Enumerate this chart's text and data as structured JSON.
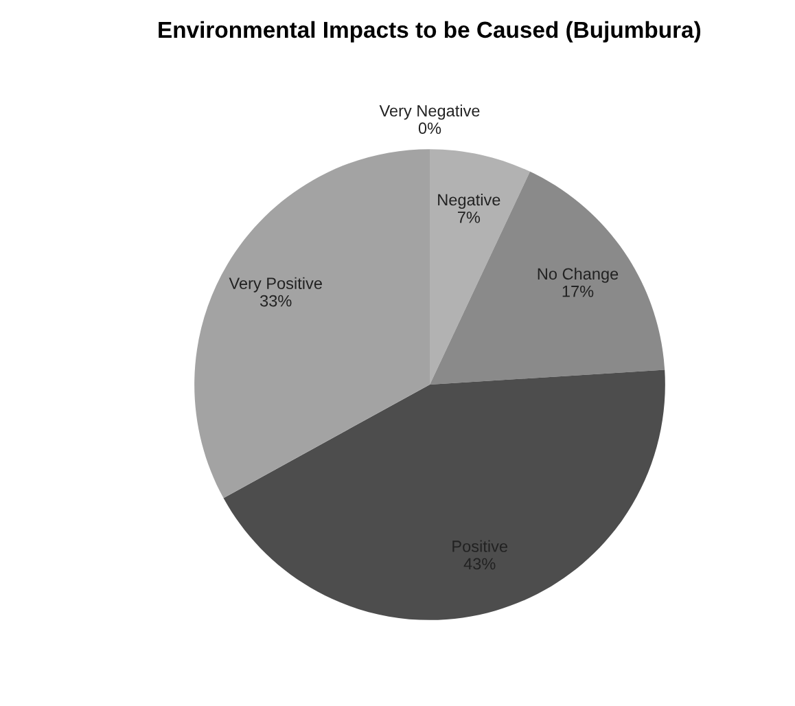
{
  "chart_data": {
    "type": "pie",
    "title": "Environmental Impacts to be Caused (Bujumbura)",
    "categories": [
      "Very Negative",
      "Negative",
      "No Change",
      "Positive",
      "Very Positive"
    ],
    "values": [
      0,
      7,
      17,
      43,
      33
    ],
    "value_labels": [
      "0%",
      "7%",
      "17%",
      "43%",
      "33%"
    ],
    "colors": [
      "#d0d0d0",
      "#b2b2b2",
      "#8a8a8a",
      "#4d4d4d",
      "#a3a3a3"
    ],
    "legend": false
  }
}
